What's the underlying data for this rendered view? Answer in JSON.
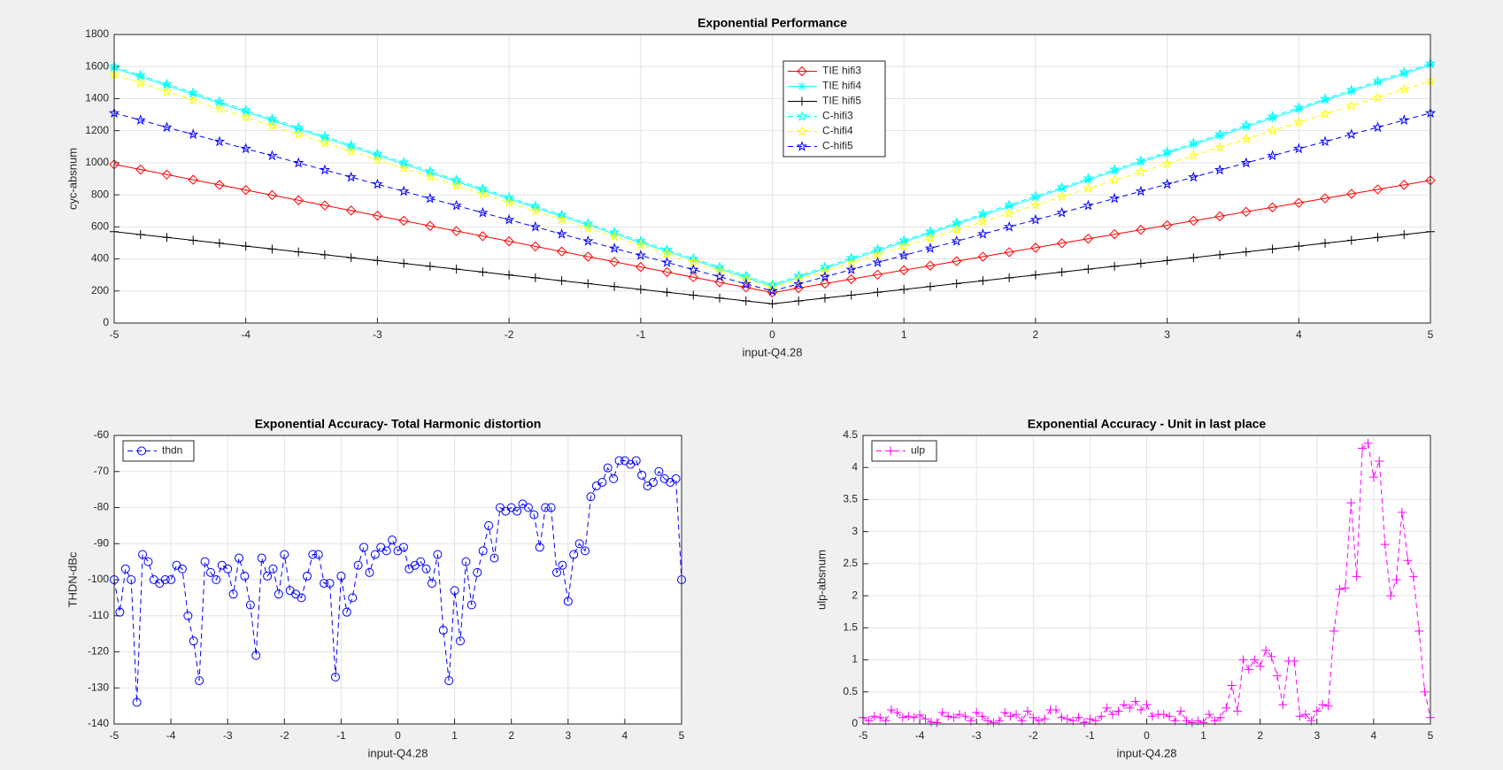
{
  "chart_data": [
    {
      "type": "line",
      "title": "Exponential Performance",
      "xlabel": "input-Q4.28",
      "ylabel": "cyc-absnum",
      "x": [
        -5,
        -4.8,
        -4.6,
        -4.4,
        -4.2,
        -4,
        -3.8,
        -3.6,
        -3.4,
        -3.2,
        -3,
        -2.8,
        -2.6,
        -2.4,
        -2.2,
        -2,
        -1.8,
        -1.6,
        -1.4,
        -1.2,
        -1,
        -0.8,
        -0.6,
        -0.4,
        -0.2,
        0,
        0.2,
        0.4,
        0.6,
        0.8,
        1,
        1.2,
        1.4,
        1.6,
        1.8,
        2,
        2.2,
        2.4,
        2.6,
        2.8,
        3,
        3.2,
        3.4,
        3.6,
        3.8,
        4,
        4.2,
        4.4,
        4.6,
        4.8,
        5
      ],
      "xlim": [
        -5,
        5
      ],
      "xticks": [
        -5,
        -4,
        -3,
        -2,
        -1,
        0,
        1,
        2,
        3,
        4,
        5
      ],
      "ylim": [
        0,
        1800
      ],
      "yticks": [
        0,
        200,
        400,
        600,
        800,
        1000,
        1200,
        1400,
        1600,
        1800
      ],
      "grid": true,
      "legend": "north",
      "series": [
        {
          "name": "TIE hifi3",
          "color": "#ff0000",
          "marker": "diamond",
          "linestyle": "solid",
          "values": [
            990,
            958,
            926,
            894,
            862,
            830,
            798,
            766,
            734,
            702,
            670,
            638,
            606,
            574,
            542,
            510,
            478,
            446,
            414,
            382,
            350,
            318,
            286,
            254,
            222,
            190,
            218,
            246,
            274,
            302,
            330,
            358,
            386,
            414,
            442,
            470,
            498,
            526,
            554,
            582,
            610,
            638,
            666,
            694,
            722,
            750,
            778,
            806,
            834,
            862,
            890
          ]
        },
        {
          "name": "TIE hifi4",
          "color": "#00ffff",
          "marker": "asterisk",
          "linestyle": "solid",
          "values": [
            1590,
            1536,
            1481,
            1427,
            1372,
            1318,
            1264,
            1209,
            1155,
            1100,
            1046,
            992,
            937,
            883,
            828,
            774,
            720,
            665,
            611,
            556,
            502,
            448,
            393,
            339,
            284,
            230,
            285,
            340,
            396,
            451,
            506,
            561,
            616,
            672,
            727,
            782,
            837,
            892,
            948,
            1003,
            1058,
            1113,
            1168,
            1224,
            1279,
            1334,
            1389,
            1444,
            1500,
            1555,
            1610
          ]
        },
        {
          "name": "TIE hifi5",
          "color": "#000000",
          "marker": "plus",
          "linestyle": "solid",
          "values": [
            570,
            552,
            534,
            516,
            498,
            480,
            462,
            444,
            426,
            408,
            390,
            372,
            354,
            336,
            318,
            300,
            282,
            264,
            246,
            228,
            210,
            192,
            174,
            156,
            138,
            120,
            138,
            156,
            174,
            192,
            210,
            228,
            246,
            264,
            282,
            300,
            318,
            336,
            354,
            372,
            390,
            408,
            426,
            444,
            462,
            480,
            498,
            516,
            534,
            552,
            570
          ]
        },
        {
          "name": "C-hifi3",
          "color": "#00ffff",
          "marker": "pentagram",
          "linestyle": "dashed",
          "values": [
            1600,
            1546,
            1491,
            1437,
            1382,
            1328,
            1274,
            1219,
            1165,
            1110,
            1056,
            1002,
            947,
            893,
            838,
            784,
            730,
            675,
            621,
            566,
            512,
            458,
            403,
            349,
            294,
            240,
            295,
            350,
            406,
            461,
            516,
            571,
            626,
            682,
            737,
            792,
            847,
            902,
            958,
            1013,
            1068,
            1123,
            1178,
            1234,
            1289,
            1344,
            1399,
            1454,
            1510,
            1565,
            1620
          ]
        },
        {
          "name": "C-hifi4",
          "color": "#ffff00",
          "marker": "pentagram",
          "linestyle": "dashed",
          "values": [
            1550,
            1497,
            1444,
            1390,
            1337,
            1284,
            1231,
            1178,
            1124,
            1071,
            1018,
            965,
            912,
            858,
            805,
            752,
            699,
            646,
            592,
            539,
            486,
            433,
            380,
            326,
            273,
            220,
            272,
            323,
            375,
            426,
            478,
            530,
            581,
            633,
            684,
            736,
            788,
            839,
            891,
            942,
            994,
            1046,
            1097,
            1149,
            1200,
            1252,
            1304,
            1355,
            1407,
            1458,
            1510
          ]
        },
        {
          "name": "C-hifi5",
          "color": "#0000ff",
          "marker": "pentagram",
          "linestyle": "dashed",
          "values": [
            1310,
            1266,
            1221,
            1177,
            1132,
            1088,
            1044,
            999,
            955,
            910,
            866,
            822,
            777,
            733,
            688,
            644,
            600,
            555,
            511,
            466,
            422,
            378,
            333,
            289,
            244,
            200,
            244,
            289,
            333,
            378,
            422,
            466,
            511,
            555,
            600,
            644,
            688,
            733,
            777,
            822,
            866,
            910,
            955,
            999,
            1044,
            1088,
            1132,
            1177,
            1221,
            1266,
            1310
          ]
        }
      ]
    },
    {
      "type": "line",
      "title": "Exponential Accuracy- Total Harmonic distortion",
      "xlabel": "input-Q4.28",
      "ylabel": "THDN-dBc",
      "x": [
        -5,
        -4.9,
        -4.8,
        -4.7,
        -4.6,
        -4.5,
        -4.4,
        -4.3,
        -4.2,
        -4.1,
        -4,
        -3.9,
        -3.8,
        -3.7,
        -3.6,
        -3.5,
        -3.4,
        -3.3,
        -3.2,
        -3.1,
        -3,
        -2.9,
        -2.8,
        -2.7,
        -2.6,
        -2.5,
        -2.4,
        -2.3,
        -2.2,
        -2.1,
        -2,
        -1.9,
        -1.8,
        -1.7,
        -1.6,
        -1.5,
        -1.4,
        -1.3,
        -1.2,
        -1.1,
        -1,
        -0.9,
        -0.8,
        -0.7,
        -0.6,
        -0.5,
        -0.4,
        -0.3,
        -0.2,
        -0.1,
        0,
        0.1,
        0.2,
        0.3,
        0.4,
        0.5,
        0.6,
        0.7,
        0.8,
        0.9,
        1,
        1.1,
        1.2,
        1.3,
        1.4,
        1.5,
        1.6,
        1.7,
        1.8,
        1.9,
        2,
        2.1,
        2.2,
        2.3,
        2.4,
        2.5,
        2.6,
        2.7,
        2.8,
        2.9,
        3,
        3.1,
        3.2,
        3.3,
        3.4,
        3.5,
        3.6,
        3.7,
        3.8,
        3.9,
        4,
        4.1,
        4.2,
        4.3,
        4.4,
        4.5,
        4.6,
        4.7,
        4.8,
        4.9,
        5
      ],
      "xlim": [
        -5,
        5
      ],
      "xticks": [
        -5,
        -4,
        -3,
        -2,
        -1,
        0,
        1,
        2,
        3,
        4,
        5
      ],
      "ylim": [
        -140,
        -60
      ],
      "yticks": [
        -140,
        -130,
        -120,
        -110,
        -100,
        -90,
        -80,
        -70,
        -60
      ],
      "grid": true,
      "legend": "northwest",
      "series": [
        {
          "name": "thdn",
          "color": "#0000ff",
          "marker": "circle",
          "linestyle": "dashed",
          "values": [
            -100,
            -109,
            -97,
            -100,
            -134,
            -93,
            -95,
            -100,
            -101,
            -100,
            -100,
            -96,
            -97,
            -110,
            -117,
            -128,
            -95,
            -98,
            -100,
            -96,
            -97,
            -104,
            -94,
            -99,
            -107,
            -121,
            -94,
            -99,
            -97,
            -104,
            -93,
            -103,
            -104,
            -105,
            -99,
            -93,
            -93,
            -101,
            -101,
            -127,
            -99,
            -109,
            -105,
            -96,
            -91,
            -98,
            -93,
            -91,
            -92,
            -89,
            -92,
            -91,
            -97,
            -96,
            -95,
            -97,
            -101,
            -93,
            -114,
            -128,
            -103,
            -117,
            -95,
            -107,
            -98,
            -92,
            -85,
            -94,
            -80,
            -81,
            -80,
            -81,
            -79,
            -80,
            -82,
            -91,
            -80,
            -80,
            -98,
            -96,
            -106,
            -93,
            -90,
            -92,
            -77,
            -74,
            -73,
            -69,
            -72,
            -67,
            -67,
            -68,
            -67,
            -71,
            -74,
            -73,
            -70,
            -72,
            -73,
            -72,
            -100
          ]
        }
      ]
    },
    {
      "type": "line",
      "title": "Exponential Accuracy - Unit in last place",
      "xlabel": "input-Q4.28",
      "ylabel": "ulp-absnum",
      "x": [
        -5,
        -4.9,
        -4.8,
        -4.7,
        -4.6,
        -4.5,
        -4.4,
        -4.3,
        -4.2,
        -4.1,
        -4,
        -3.9,
        -3.8,
        -3.7,
        -3.6,
        -3.5,
        -3.4,
        -3.3,
        -3.2,
        -3.1,
        -3,
        -2.9,
        -2.8,
        -2.7,
        -2.6,
        -2.5,
        -2.4,
        -2.3,
        -2.2,
        -2.1,
        -2,
        -1.9,
        -1.8,
        -1.7,
        -1.6,
        -1.5,
        -1.4,
        -1.3,
        -1.2,
        -1.1,
        -1,
        -0.9,
        -0.8,
        -0.7,
        -0.6,
        -0.5,
        -0.4,
        -0.3,
        -0.2,
        -0.1,
        0,
        0.1,
        0.2,
        0.3,
        0.4,
        0.5,
        0.6,
        0.7,
        0.8,
        0.9,
        1,
        1.1,
        1.2,
        1.3,
        1.4,
        1.5,
        1.6,
        1.7,
        1.8,
        1.9,
        2,
        2.1,
        2.2,
        2.3,
        2.4,
        2.5,
        2.6,
        2.7,
        2.8,
        2.9,
        3,
        3.1,
        3.2,
        3.3,
        3.4,
        3.5,
        3.6,
        3.7,
        3.8,
        3.9,
        4,
        4.1,
        4.2,
        4.3,
        4.4,
        4.5,
        4.6,
        4.7,
        4.8,
        4.9,
        5
      ],
      "xlim": [
        -5,
        5
      ],
      "xticks": [
        -5,
        -4,
        -3,
        -2,
        -1,
        0,
        1,
        2,
        3,
        4,
        5
      ],
      "ylim": [
        0,
        4.5
      ],
      "yticks": [
        0,
        0.5,
        1,
        1.5,
        2,
        2.5,
        3,
        3.5,
        4,
        4.5
      ],
      "grid": true,
      "legend": "northwest",
      "series": [
        {
          "name": "ulp",
          "color": "#ff00ff",
          "marker": "plus",
          "linestyle": "dashed",
          "values": [
            0.1,
            0.05,
            0.12,
            0.1,
            0.05,
            0.22,
            0.18,
            0.1,
            0.12,
            0.1,
            0.14,
            0.08,
            0.03,
            0.02,
            0.18,
            0.12,
            0.1,
            0.15,
            0.12,
            0.05,
            0.18,
            0.12,
            0.05,
            0.02,
            0.05,
            0.18,
            0.12,
            0.15,
            0.05,
            0.2,
            0.1,
            0.05,
            0.08,
            0.22,
            0.22,
            0.1,
            0.08,
            0.05,
            0.1,
            0.02,
            0.08,
            0.05,
            0.12,
            0.25,
            0.15,
            0.2,
            0.3,
            0.25,
            0.35,
            0.22,
            0.3,
            0.12,
            0.15,
            0.15,
            0.12,
            0.05,
            0.2,
            0.05,
            0.02,
            0.05,
            0.02,
            0.15,
            0.05,
            0.1,
            0.25,
            0.6,
            0.2,
            1.0,
            0.85,
            1.0,
            0.9,
            1.15,
            1.05,
            0.75,
            0.3,
            0.98,
            0.98,
            0.12,
            0.15,
            0.05,
            0.2,
            0.3,
            0.28,
            1.45,
            2.1,
            2.12,
            3.45,
            2.3,
            4.3,
            4.38,
            3.85,
            4.1,
            2.8,
            2.0,
            2.25,
            3.3,
            2.55,
            2.3,
            1.45,
            0.5,
            0.1
          ]
        }
      ]
    }
  ]
}
